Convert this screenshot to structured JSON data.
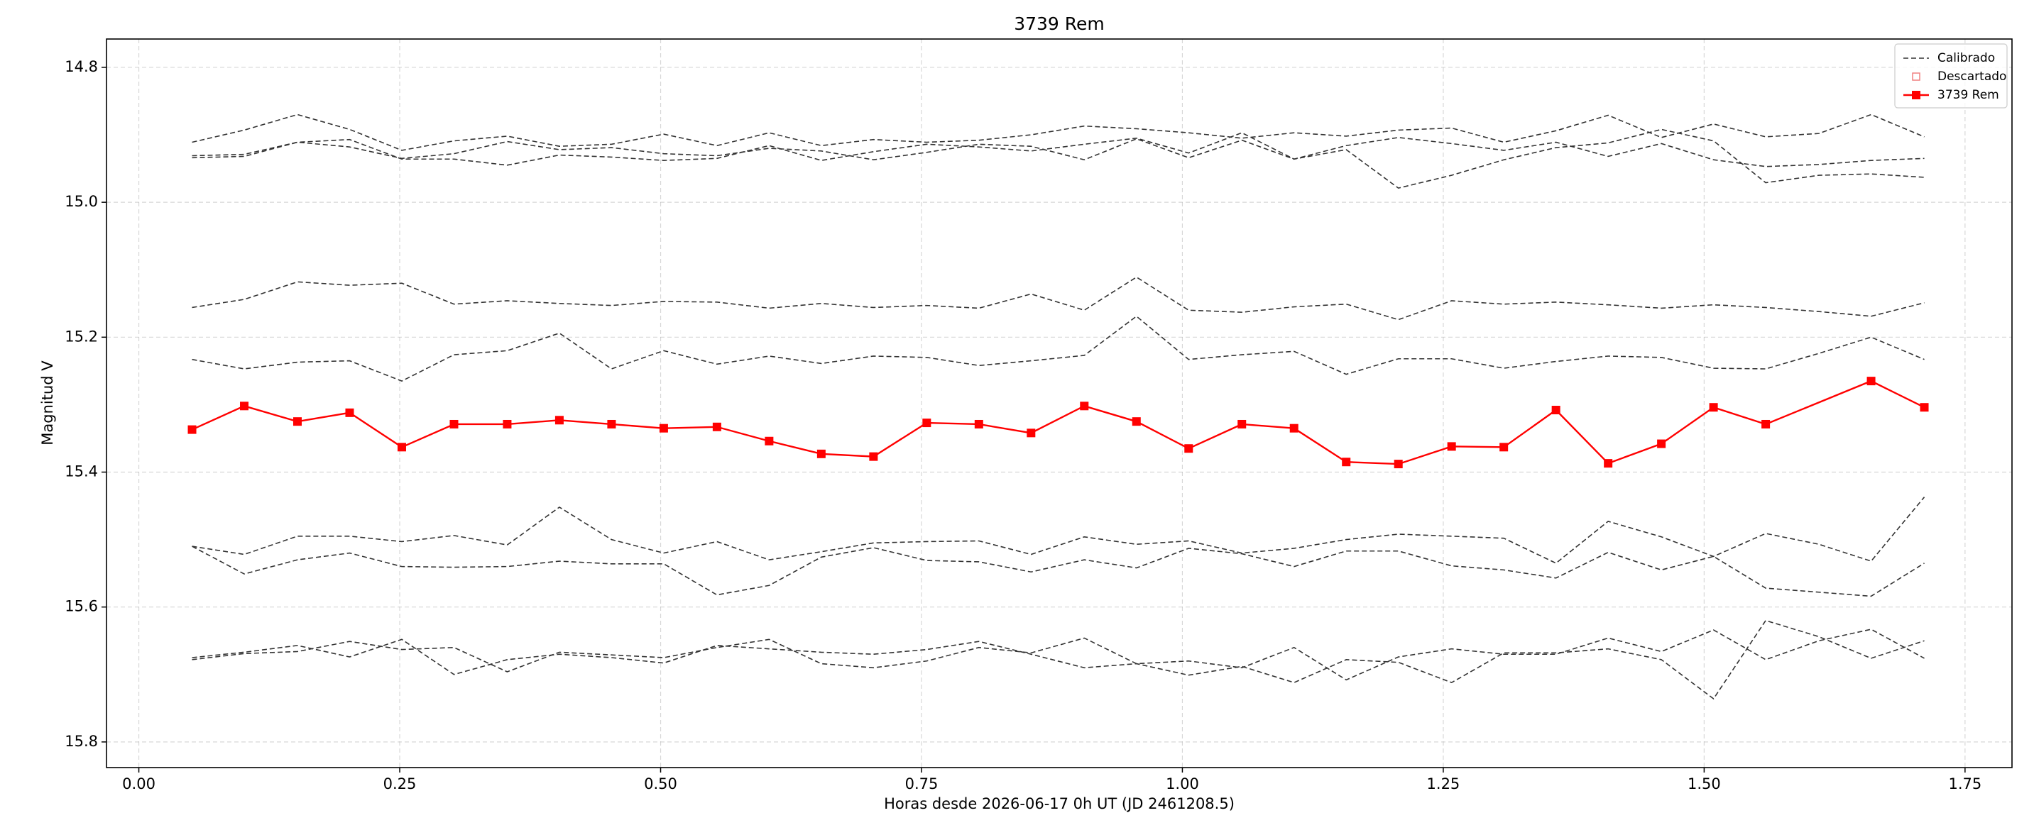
{
  "chart_data": {
    "type": "line",
    "title": "3739 Rem",
    "x_label": "Horas desde 2026-06-17 0h UT (JD 2461208.5)",
    "y_label": "Magnitud V",
    "xlim": [
      -0.031,
      1.795
    ],
    "ylim": [
      15.838,
      14.758
    ],
    "xticks": [
      {
        "value": 0,
        "label": "0.00"
      },
      {
        "value": 0.25,
        "label": "0.25"
      },
      {
        "value": 0.5,
        "label": "0.50"
      },
      {
        "value": 0.75,
        "label": "0.75"
      },
      {
        "value": 1,
        "label": "1.00"
      },
      {
        "value": 1.25,
        "label": "1.25"
      },
      {
        "value": 1.5,
        "label": "1.50"
      },
      {
        "value": 1.75,
        "label": "1.75"
      }
    ],
    "yticks": [
      14.8,
      {
        "value": 15,
        "label": "15.0"
      },
      15.2,
      15.4,
      15.6,
      15.8
    ],
    "grid": true,
    "legend": "upper right",
    "x": [
      0.051,
      0.101,
      0.152,
      0.202,
      0.252,
      0.302,
      0.353,
      0.403,
      0.453,
      0.503,
      0.554,
      0.604,
      0.654,
      0.704,
      0.755,
      0.805,
      0.855,
      0.906,
      0.956,
      1.006,
      1.057,
      1.107,
      1.157,
      1.207,
      1.258,
      1.308,
      1.358,
      1.408,
      1.459,
      1.509,
      1.559,
      1.61,
      1.66,
      1.711
    ],
    "series": [
      {
        "name": "Calibrado",
        "color": "#333333",
        "linestyle": "dashed",
        "lines": [
          [
            14.911,
            14.893,
            14.87,
            14.892,
            14.923,
            14.909,
            14.902,
            14.917,
            14.914,
            14.899,
            14.916,
            14.897,
            14.916,
            14.907,
            14.911,
            14.908,
            14.9,
            14.887,
            14.891,
            14.897,
            14.905,
            14.897,
            14.902,
            14.893,
            14.89,
            14.911,
            14.894,
            14.871,
            14.904,
            14.884,
            14.903,
            14.898,
            14.87,
            14.903
          ],
          [
            14.934,
            14.932,
            14.911,
            14.918,
            14.935,
            14.928,
            14.91,
            14.922,
            14.919,
            14.928,
            14.931,
            14.92,
            14.924,
            14.937,
            14.926,
            14.914,
            14.917,
            14.937,
            14.906,
            14.934,
            14.908,
            14.936,
            14.916,
            14.904,
            14.913,
            14.923,
            14.911,
            14.932,
            14.913,
            14.937,
            14.947,
            14.944,
            14.938,
            14.935
          ],
          [
            14.931,
            14.929,
            14.911,
            14.907,
            14.936,
            14.936,
            14.945,
            14.93,
            14.933,
            14.938,
            14.935,
            14.916,
            14.938,
            14.925,
            14.914,
            14.918,
            14.924,
            14.914,
            14.905,
            14.927,
            14.897,
            14.936,
            14.922,
            14.979,
            14.96,
            14.937,
            14.919,
            14.912,
            14.892,
            14.909,
            14.971,
            14.96,
            14.958,
            14.963
          ],
          [
            15.156,
            15.144,
            15.118,
            15.123,
            15.12,
            15.151,
            15.146,
            15.15,
            15.153,
            15.147,
            15.148,
            15.157,
            15.15,
            15.156,
            15.153,
            15.157,
            15.136,
            15.16,
            15.111,
            15.16,
            15.163,
            15.155,
            15.151,
            15.174,
            15.146,
            15.151,
            15.148,
            15.152,
            15.157,
            15.152,
            15.156,
            15.162,
            15.169,
            15.149
          ],
          [
            15.233,
            15.247,
            15.237,
            15.235,
            15.265,
            15.226,
            15.22,
            15.194,
            15.247,
            15.22,
            15.24,
            15.228,
            15.239,
            15.228,
            15.23,
            15.242,
            15.235,
            15.227,
            15.169,
            15.233,
            15.226,
            15.221,
            15.255,
            15.232,
            15.232,
            15.246,
            15.236,
            15.228,
            15.23,
            15.246,
            15.247,
            15.224,
            15.2,
            15.233
          ],
          [
            15.51,
            15.522,
            15.495,
            15.495,
            15.503,
            15.494,
            15.508,
            15.452,
            15.5,
            15.52,
            15.503,
            15.53,
            15.518,
            15.505,
            15.503,
            15.502,
            15.522,
            15.496,
            15.507,
            15.502,
            15.52,
            15.513,
            15.5,
            15.492,
            15.495,
            15.498,
            15.535,
            15.473,
            15.496,
            15.525,
            15.491,
            15.507,
            15.532,
            15.437
          ],
          [
            15.51,
            15.551,
            15.53,
            15.52,
            15.54,
            15.541,
            15.54,
            15.532,
            15.536,
            15.536,
            15.582,
            15.568,
            15.526,
            15.512,
            15.531,
            15.533,
            15.548,
            15.53,
            15.542,
            15.513,
            15.521,
            15.54,
            15.517,
            15.517,
            15.539,
            15.545,
            15.557,
            15.519,
            15.545,
            15.525,
            15.572,
            15.578,
            15.584,
            15.535
          ],
          [
            15.678,
            15.669,
            15.666,
            15.651,
            15.663,
            15.66,
            15.696,
            15.667,
            15.671,
            15.675,
            15.66,
            15.648,
            15.684,
            15.69,
            15.68,
            15.66,
            15.668,
            15.646,
            15.684,
            15.68,
            15.69,
            15.66,
            15.708,
            15.674,
            15.662,
            15.67,
            15.67,
            15.646,
            15.666,
            15.634,
            15.678,
            15.65,
            15.633,
            15.676
          ],
          [
            15.675,
            15.667,
            15.657,
            15.674,
            15.648,
            15.7,
            15.678,
            15.67,
            15.675,
            15.683,
            15.657,
            15.662,
            15.667,
            15.67,
            15.663,
            15.651,
            15.67,
            15.69,
            15.684,
            15.701,
            15.688,
            15.712,
            15.678,
            15.682,
            15.712,
            15.668,
            15.668,
            15.662,
            15.678,
            15.736,
            15.62,
            15.644,
            15.676,
            15.65
          ]
        ]
      },
      {
        "name": "Descartado",
        "color": "#f08080",
        "marker": "open-square"
      },
      {
        "name": "3739 Rem",
        "color": "#ff0000",
        "marker": "square",
        "x": [
          0.051,
          0.101,
          0.152,
          0.202,
          0.252,
          0.302,
          0.353,
          0.403,
          0.453,
          0.503,
          0.554,
          0.604,
          0.654,
          0.704,
          0.755,
          0.805,
          0.855,
          0.906,
          0.956,
          1.006,
          1.057,
          1.107,
          1.157,
          1.207,
          1.258,
          1.308,
          1.358,
          1.408,
          1.459,
          1.509,
          1.559,
          1.66,
          1.711
        ],
        "values": [
          15.337,
          15.302,
          15.325,
          15.312,
          15.363,
          15.329,
          15.329,
          15.323,
          15.329,
          15.335,
          15.333,
          15.354,
          15.373,
          15.377,
          15.327,
          15.329,
          15.342,
          15.302,
          15.325,
          15.365,
          15.329,
          15.335,
          15.385,
          15.388,
          15.362,
          15.363,
          15.308,
          15.387,
          15.358,
          15.304,
          15.329,
          15.265,
          15.304
        ],
        "errors": [
          0.005,
          0.005,
          0.005,
          0.005,
          0.005,
          0.005,
          0.005,
          0.005,
          0.005,
          0.005,
          0.005,
          0.005,
          0.005,
          0.005,
          0.005,
          0.005,
          0.005,
          0.005,
          0.005,
          0.005,
          0.005,
          0.005,
          0.005,
          0.005,
          0.005,
          0.005,
          0.005,
          0.005,
          0.005,
          0.005,
          0.005,
          0.005,
          0.005
        ]
      }
    ]
  }
}
